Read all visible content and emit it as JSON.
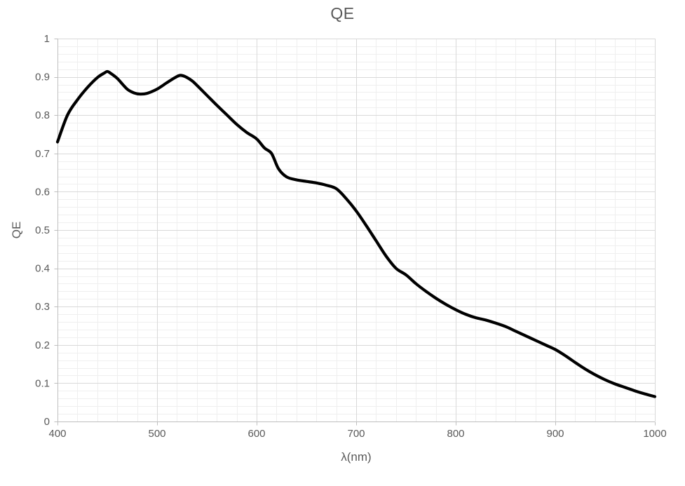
{
  "title": "QE",
  "x_axis": {
    "label": "λ(nm)",
    "min": 400,
    "max": 1000,
    "major_step": 100,
    "minor_step": 20,
    "tick_labels": [
      "400",
      "500",
      "600",
      "700",
      "800",
      "900",
      "1000"
    ]
  },
  "y_axis": {
    "label": "QE",
    "min": 0,
    "max": 1,
    "major_step": 0.1,
    "minor_step": 0.02,
    "tick_labels": [
      "0",
      "0.1",
      "0.2",
      "0.3",
      "0.4",
      "0.5",
      "0.6",
      "0.7",
      "0.8",
      "0.9",
      "1"
    ]
  },
  "chart_data": {
    "type": "line",
    "title": "QE",
    "xlabel": "λ(nm)",
    "ylabel": "QE",
    "xlim": [
      400,
      1000
    ],
    "ylim": [
      0,
      1
    ],
    "grid": true,
    "minor_grid": true,
    "legend": "none",
    "series": [
      {
        "name": "QE",
        "color": "#000000",
        "points": [
          [
            400,
            0.73
          ],
          [
            410,
            0.8
          ],
          [
            420,
            0.84
          ],
          [
            430,
            0.872
          ],
          [
            440,
            0.898
          ],
          [
            447,
            0.91
          ],
          [
            450,
            0.914
          ],
          [
            453,
            0.91
          ],
          [
            460,
            0.896
          ],
          [
            470,
            0.868
          ],
          [
            477,
            0.858
          ],
          [
            483,
            0.855
          ],
          [
            490,
            0.857
          ],
          [
            500,
            0.868
          ],
          [
            510,
            0.885
          ],
          [
            518,
            0.898
          ],
          [
            523,
            0.904
          ],
          [
            528,
            0.901
          ],
          [
            535,
            0.89
          ],
          [
            540,
            0.878
          ],
          [
            550,
            0.852
          ],
          [
            560,
            0.826
          ],
          [
            570,
            0.801
          ],
          [
            580,
            0.776
          ],
          [
            590,
            0.755
          ],
          [
            600,
            0.738
          ],
          [
            608,
            0.714
          ],
          [
            615,
            0.7
          ],
          [
            622,
            0.66
          ],
          [
            630,
            0.639
          ],
          [
            640,
            0.631
          ],
          [
            650,
            0.627
          ],
          [
            660,
            0.623
          ],
          [
            670,
            0.617
          ],
          [
            680,
            0.608
          ],
          [
            690,
            0.582
          ],
          [
            700,
            0.55
          ],
          [
            710,
            0.512
          ],
          [
            720,
            0.472
          ],
          [
            730,
            0.432
          ],
          [
            740,
            0.4
          ],
          [
            750,
            0.383
          ],
          [
            760,
            0.36
          ],
          [
            770,
            0.34
          ],
          [
            780,
            0.322
          ],
          [
            790,
            0.306
          ],
          [
            800,
            0.292
          ],
          [
            810,
            0.28
          ],
          [
            820,
            0.271
          ],
          [
            830,
            0.265
          ],
          [
            840,
            0.257
          ],
          [
            850,
            0.248
          ],
          [
            860,
            0.236
          ],
          [
            870,
            0.224
          ],
          [
            880,
            0.212
          ],
          [
            890,
            0.2
          ],
          [
            900,
            0.188
          ],
          [
            910,
            0.172
          ],
          [
            920,
            0.154
          ],
          [
            930,
            0.137
          ],
          [
            940,
            0.122
          ],
          [
            950,
            0.109
          ],
          [
            960,
            0.098
          ],
          [
            970,
            0.089
          ],
          [
            980,
            0.08
          ],
          [
            990,
            0.072
          ],
          [
            1000,
            0.065
          ]
        ]
      }
    ]
  },
  "colors": {
    "curve": "#000000",
    "text": "#595959",
    "major_grid": "#d9d9d9",
    "minor_grid": "#efefef",
    "axis": "#bfbfbf",
    "background": "#ffffff"
  }
}
